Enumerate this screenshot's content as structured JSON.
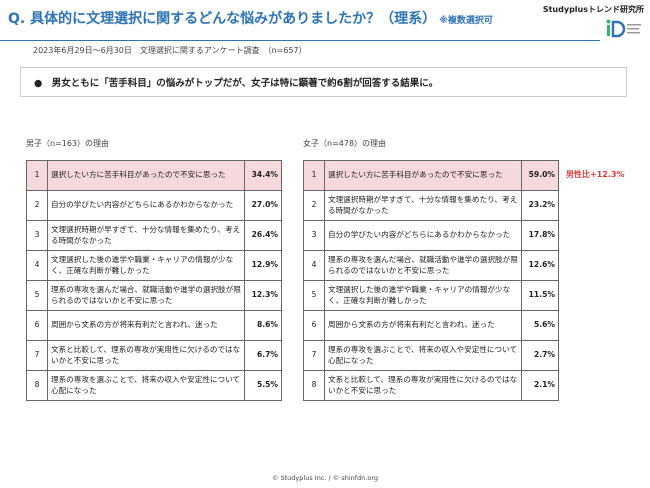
{
  "header": {
    "title": "Q. 具体的に文理選択に関するどんな悩みがありましたか？（理系）",
    "title_note": "※複数選択可",
    "brand": "Studyplusトレンド研究所",
    "subtitle": "2023年6月29日〜6月30日　文理選択に関するアンケート調査　（n=657）"
  },
  "summary": "男女ともに「苦手科目」の悩みがトップだが、女子は特に顕著で約6割が回答する結果に。",
  "tables": [
    {
      "caption": "男子（n=163）の理由",
      "rows": [
        [
          "1",
          "選択したい方に苦手科目があったので不安に思った",
          "34.4%"
        ],
        [
          "2",
          "自分の学びたい内容がどちらにあるかわからなかった",
          "27.0%"
        ],
        [
          "3",
          "文理選択時期が早すぎて、十分な情報を集めたり、考える時間がなかった",
          "26.4%"
        ],
        [
          "4",
          "文理選択した後の進学や職業・キャリアの情報が少なく、正確な判断が難しかった",
          "12.9%"
        ],
        [
          "5",
          "理系の専攻を選んだ場合、就職活動や進学の選択肢が限られるのではないかと不安に思った",
          "12.3%"
        ],
        [
          "6",
          "周囲から文系の方が将来有利だと言われ、迷った",
          "8.6%"
        ],
        [
          "7",
          "文系と比較して、理系の専攻が実用性に欠けるのではないかと不安に思った",
          "6.7%"
        ],
        [
          "8",
          "理系の専攻を選ぶことで、将来の収入や安定性について心配になった",
          "5.5%"
        ]
      ]
    },
    {
      "caption": "女子（n=478）の理由",
      "rows": [
        [
          "1",
          "選択したい方に苦手科目があったので不安に思った",
          "59.0%"
        ],
        [
          "2",
          "文理選択時期が早すぎて、十分な情報を集めたり、考える時間がなかった",
          "23.2%"
        ],
        [
          "3",
          "自分の学びたい内容がどちらにあるかわからなかった",
          "17.8%"
        ],
        [
          "4",
          "理系の専攻を選んだ場合、就職活動や進学の選択肢が限られるのではないかと不安に思った",
          "12.6%"
        ],
        [
          "5",
          "文理選択した後の進学や職業・キャリアの情報が少なく、正確な判断が難しかった",
          "11.5%"
        ],
        [
          "6",
          "周囲から文系の方が将来有利だと言われ、迷った",
          "5.6%"
        ],
        [
          "7",
          "理系の専攻を選ぶことで、将来の収入や安定性について心配になった",
          "2.7%"
        ],
        [
          "8",
          "文系と比較して、理系の専攻が実用性に欠けるのではないかと不安に思った",
          "2.1%"
        ]
      ]
    }
  ],
  "annotation": "男性比+12.3%",
  "footer": "© Studyplus Inc. / © shinfdn.org"
}
